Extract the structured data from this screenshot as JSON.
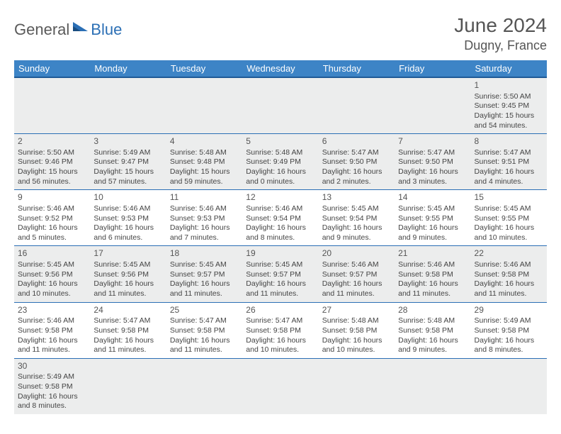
{
  "logo": {
    "general": "General",
    "blue": "Blue"
  },
  "title": "June 2024",
  "location": "Dugny, France",
  "colors": {
    "header_bg": "#3d84c6",
    "header_border": "#1f5a96",
    "cell_border": "#2b6fb5",
    "shaded": "#eceded",
    "text": "#444444",
    "logo_gray": "#5a5a5a",
    "logo_blue": "#2b6fb5"
  },
  "weekdays": [
    "Sunday",
    "Monday",
    "Tuesday",
    "Wednesday",
    "Thursday",
    "Friday",
    "Saturday"
  ],
  "weeks": [
    [
      null,
      null,
      null,
      null,
      null,
      null,
      {
        "n": "1",
        "sr": "Sunrise: 5:50 AM",
        "ss": "Sunset: 9:45 PM",
        "d1": "Daylight: 15 hours",
        "d2": "and 54 minutes."
      }
    ],
    [
      {
        "n": "2",
        "sr": "Sunrise: 5:50 AM",
        "ss": "Sunset: 9:46 PM",
        "d1": "Daylight: 15 hours",
        "d2": "and 56 minutes."
      },
      {
        "n": "3",
        "sr": "Sunrise: 5:49 AM",
        "ss": "Sunset: 9:47 PM",
        "d1": "Daylight: 15 hours",
        "d2": "and 57 minutes."
      },
      {
        "n": "4",
        "sr": "Sunrise: 5:48 AM",
        "ss": "Sunset: 9:48 PM",
        "d1": "Daylight: 15 hours",
        "d2": "and 59 minutes."
      },
      {
        "n": "5",
        "sr": "Sunrise: 5:48 AM",
        "ss": "Sunset: 9:49 PM",
        "d1": "Daylight: 16 hours",
        "d2": "and 0 minutes."
      },
      {
        "n": "6",
        "sr": "Sunrise: 5:47 AM",
        "ss": "Sunset: 9:50 PM",
        "d1": "Daylight: 16 hours",
        "d2": "and 2 minutes."
      },
      {
        "n": "7",
        "sr": "Sunrise: 5:47 AM",
        "ss": "Sunset: 9:50 PM",
        "d1": "Daylight: 16 hours",
        "d2": "and 3 minutes."
      },
      {
        "n": "8",
        "sr": "Sunrise: 5:47 AM",
        "ss": "Sunset: 9:51 PM",
        "d1": "Daylight: 16 hours",
        "d2": "and 4 minutes."
      }
    ],
    [
      {
        "n": "9",
        "sr": "Sunrise: 5:46 AM",
        "ss": "Sunset: 9:52 PM",
        "d1": "Daylight: 16 hours",
        "d2": "and 5 minutes."
      },
      {
        "n": "10",
        "sr": "Sunrise: 5:46 AM",
        "ss": "Sunset: 9:53 PM",
        "d1": "Daylight: 16 hours",
        "d2": "and 6 minutes."
      },
      {
        "n": "11",
        "sr": "Sunrise: 5:46 AM",
        "ss": "Sunset: 9:53 PM",
        "d1": "Daylight: 16 hours",
        "d2": "and 7 minutes."
      },
      {
        "n": "12",
        "sr": "Sunrise: 5:46 AM",
        "ss": "Sunset: 9:54 PM",
        "d1": "Daylight: 16 hours",
        "d2": "and 8 minutes."
      },
      {
        "n": "13",
        "sr": "Sunrise: 5:45 AM",
        "ss": "Sunset: 9:54 PM",
        "d1": "Daylight: 16 hours",
        "d2": "and 9 minutes."
      },
      {
        "n": "14",
        "sr": "Sunrise: 5:45 AM",
        "ss": "Sunset: 9:55 PM",
        "d1": "Daylight: 16 hours",
        "d2": "and 9 minutes."
      },
      {
        "n": "15",
        "sr": "Sunrise: 5:45 AM",
        "ss": "Sunset: 9:55 PM",
        "d1": "Daylight: 16 hours",
        "d2": "and 10 minutes."
      }
    ],
    [
      {
        "n": "16",
        "sr": "Sunrise: 5:45 AM",
        "ss": "Sunset: 9:56 PM",
        "d1": "Daylight: 16 hours",
        "d2": "and 10 minutes."
      },
      {
        "n": "17",
        "sr": "Sunrise: 5:45 AM",
        "ss": "Sunset: 9:56 PM",
        "d1": "Daylight: 16 hours",
        "d2": "and 11 minutes."
      },
      {
        "n": "18",
        "sr": "Sunrise: 5:45 AM",
        "ss": "Sunset: 9:57 PM",
        "d1": "Daylight: 16 hours",
        "d2": "and 11 minutes."
      },
      {
        "n": "19",
        "sr": "Sunrise: 5:45 AM",
        "ss": "Sunset: 9:57 PM",
        "d1": "Daylight: 16 hours",
        "d2": "and 11 minutes."
      },
      {
        "n": "20",
        "sr": "Sunrise: 5:46 AM",
        "ss": "Sunset: 9:57 PM",
        "d1": "Daylight: 16 hours",
        "d2": "and 11 minutes."
      },
      {
        "n": "21",
        "sr": "Sunrise: 5:46 AM",
        "ss": "Sunset: 9:58 PM",
        "d1": "Daylight: 16 hours",
        "d2": "and 11 minutes."
      },
      {
        "n": "22",
        "sr": "Sunrise: 5:46 AM",
        "ss": "Sunset: 9:58 PM",
        "d1": "Daylight: 16 hours",
        "d2": "and 11 minutes."
      }
    ],
    [
      {
        "n": "23",
        "sr": "Sunrise: 5:46 AM",
        "ss": "Sunset: 9:58 PM",
        "d1": "Daylight: 16 hours",
        "d2": "and 11 minutes."
      },
      {
        "n": "24",
        "sr": "Sunrise: 5:47 AM",
        "ss": "Sunset: 9:58 PM",
        "d1": "Daylight: 16 hours",
        "d2": "and 11 minutes."
      },
      {
        "n": "25",
        "sr": "Sunrise: 5:47 AM",
        "ss": "Sunset: 9:58 PM",
        "d1": "Daylight: 16 hours",
        "d2": "and 11 minutes."
      },
      {
        "n": "26",
        "sr": "Sunrise: 5:47 AM",
        "ss": "Sunset: 9:58 PM",
        "d1": "Daylight: 16 hours",
        "d2": "and 10 minutes."
      },
      {
        "n": "27",
        "sr": "Sunrise: 5:48 AM",
        "ss": "Sunset: 9:58 PM",
        "d1": "Daylight: 16 hours",
        "d2": "and 10 minutes."
      },
      {
        "n": "28",
        "sr": "Sunrise: 5:48 AM",
        "ss": "Sunset: 9:58 PM",
        "d1": "Daylight: 16 hours",
        "d2": "and 9 minutes."
      },
      {
        "n": "29",
        "sr": "Sunrise: 5:49 AM",
        "ss": "Sunset: 9:58 PM",
        "d1": "Daylight: 16 hours",
        "d2": "and 8 minutes."
      }
    ],
    [
      {
        "n": "30",
        "sr": "Sunrise: 5:49 AM",
        "ss": "Sunset: 9:58 PM",
        "d1": "Daylight: 16 hours",
        "d2": "and 8 minutes."
      },
      null,
      null,
      null,
      null,
      null,
      null
    ]
  ]
}
